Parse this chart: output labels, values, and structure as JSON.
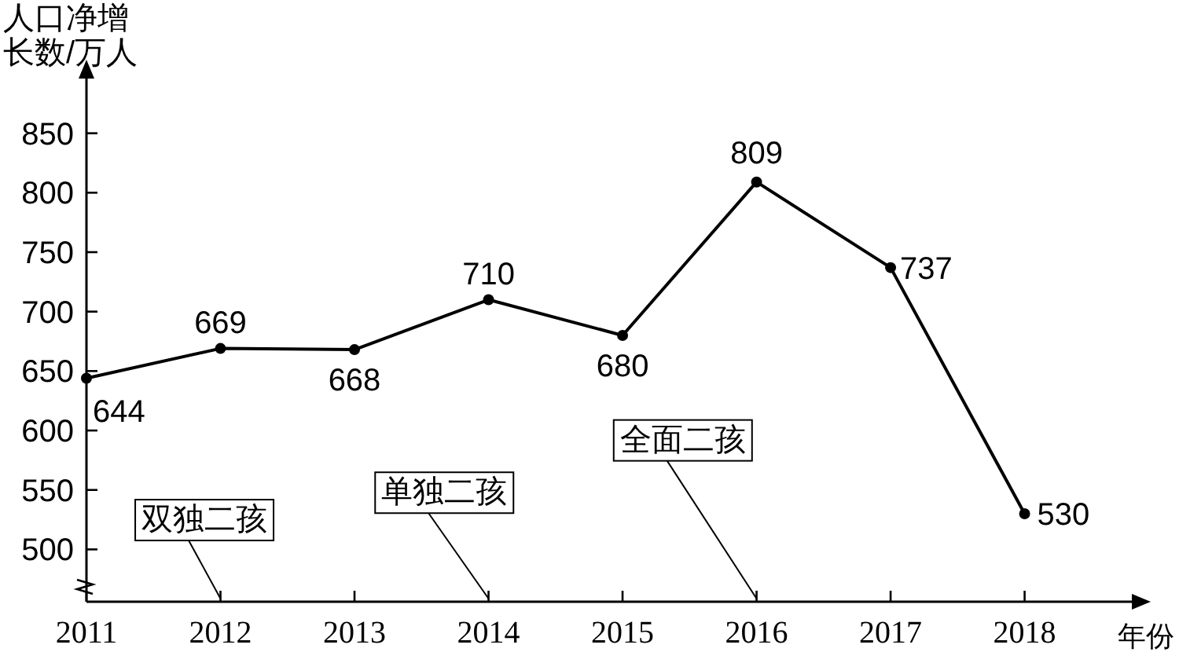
{
  "chart_data": {
    "type": "line",
    "xlabel": "年份",
    "ylabel": "人口净增长数/万人",
    "x": [
      2011,
      2012,
      2013,
      2014,
      2015,
      2016,
      2017,
      2018
    ],
    "series": [
      {
        "color": "#000000",
        "values": [
          644,
          669,
          668,
          710,
          680,
          809,
          737,
          530
        ]
      }
    ],
    "xlim": [
      2011,
      2018.8
    ],
    "ylim": [
      456,
      896
    ],
    "xticks": [
      2011,
      2012,
      2013,
      2014,
      2015,
      2016,
      2017,
      2018
    ],
    "yticks": [
      500,
      550,
      600,
      650,
      700,
      750,
      800,
      850
    ],
    "annotations": [
      "双独二孩",
      "单独二孩",
      "全面二孩"
    ],
    "data_labels": true,
    "marker": "circle",
    "line_style": "solid"
  }
}
